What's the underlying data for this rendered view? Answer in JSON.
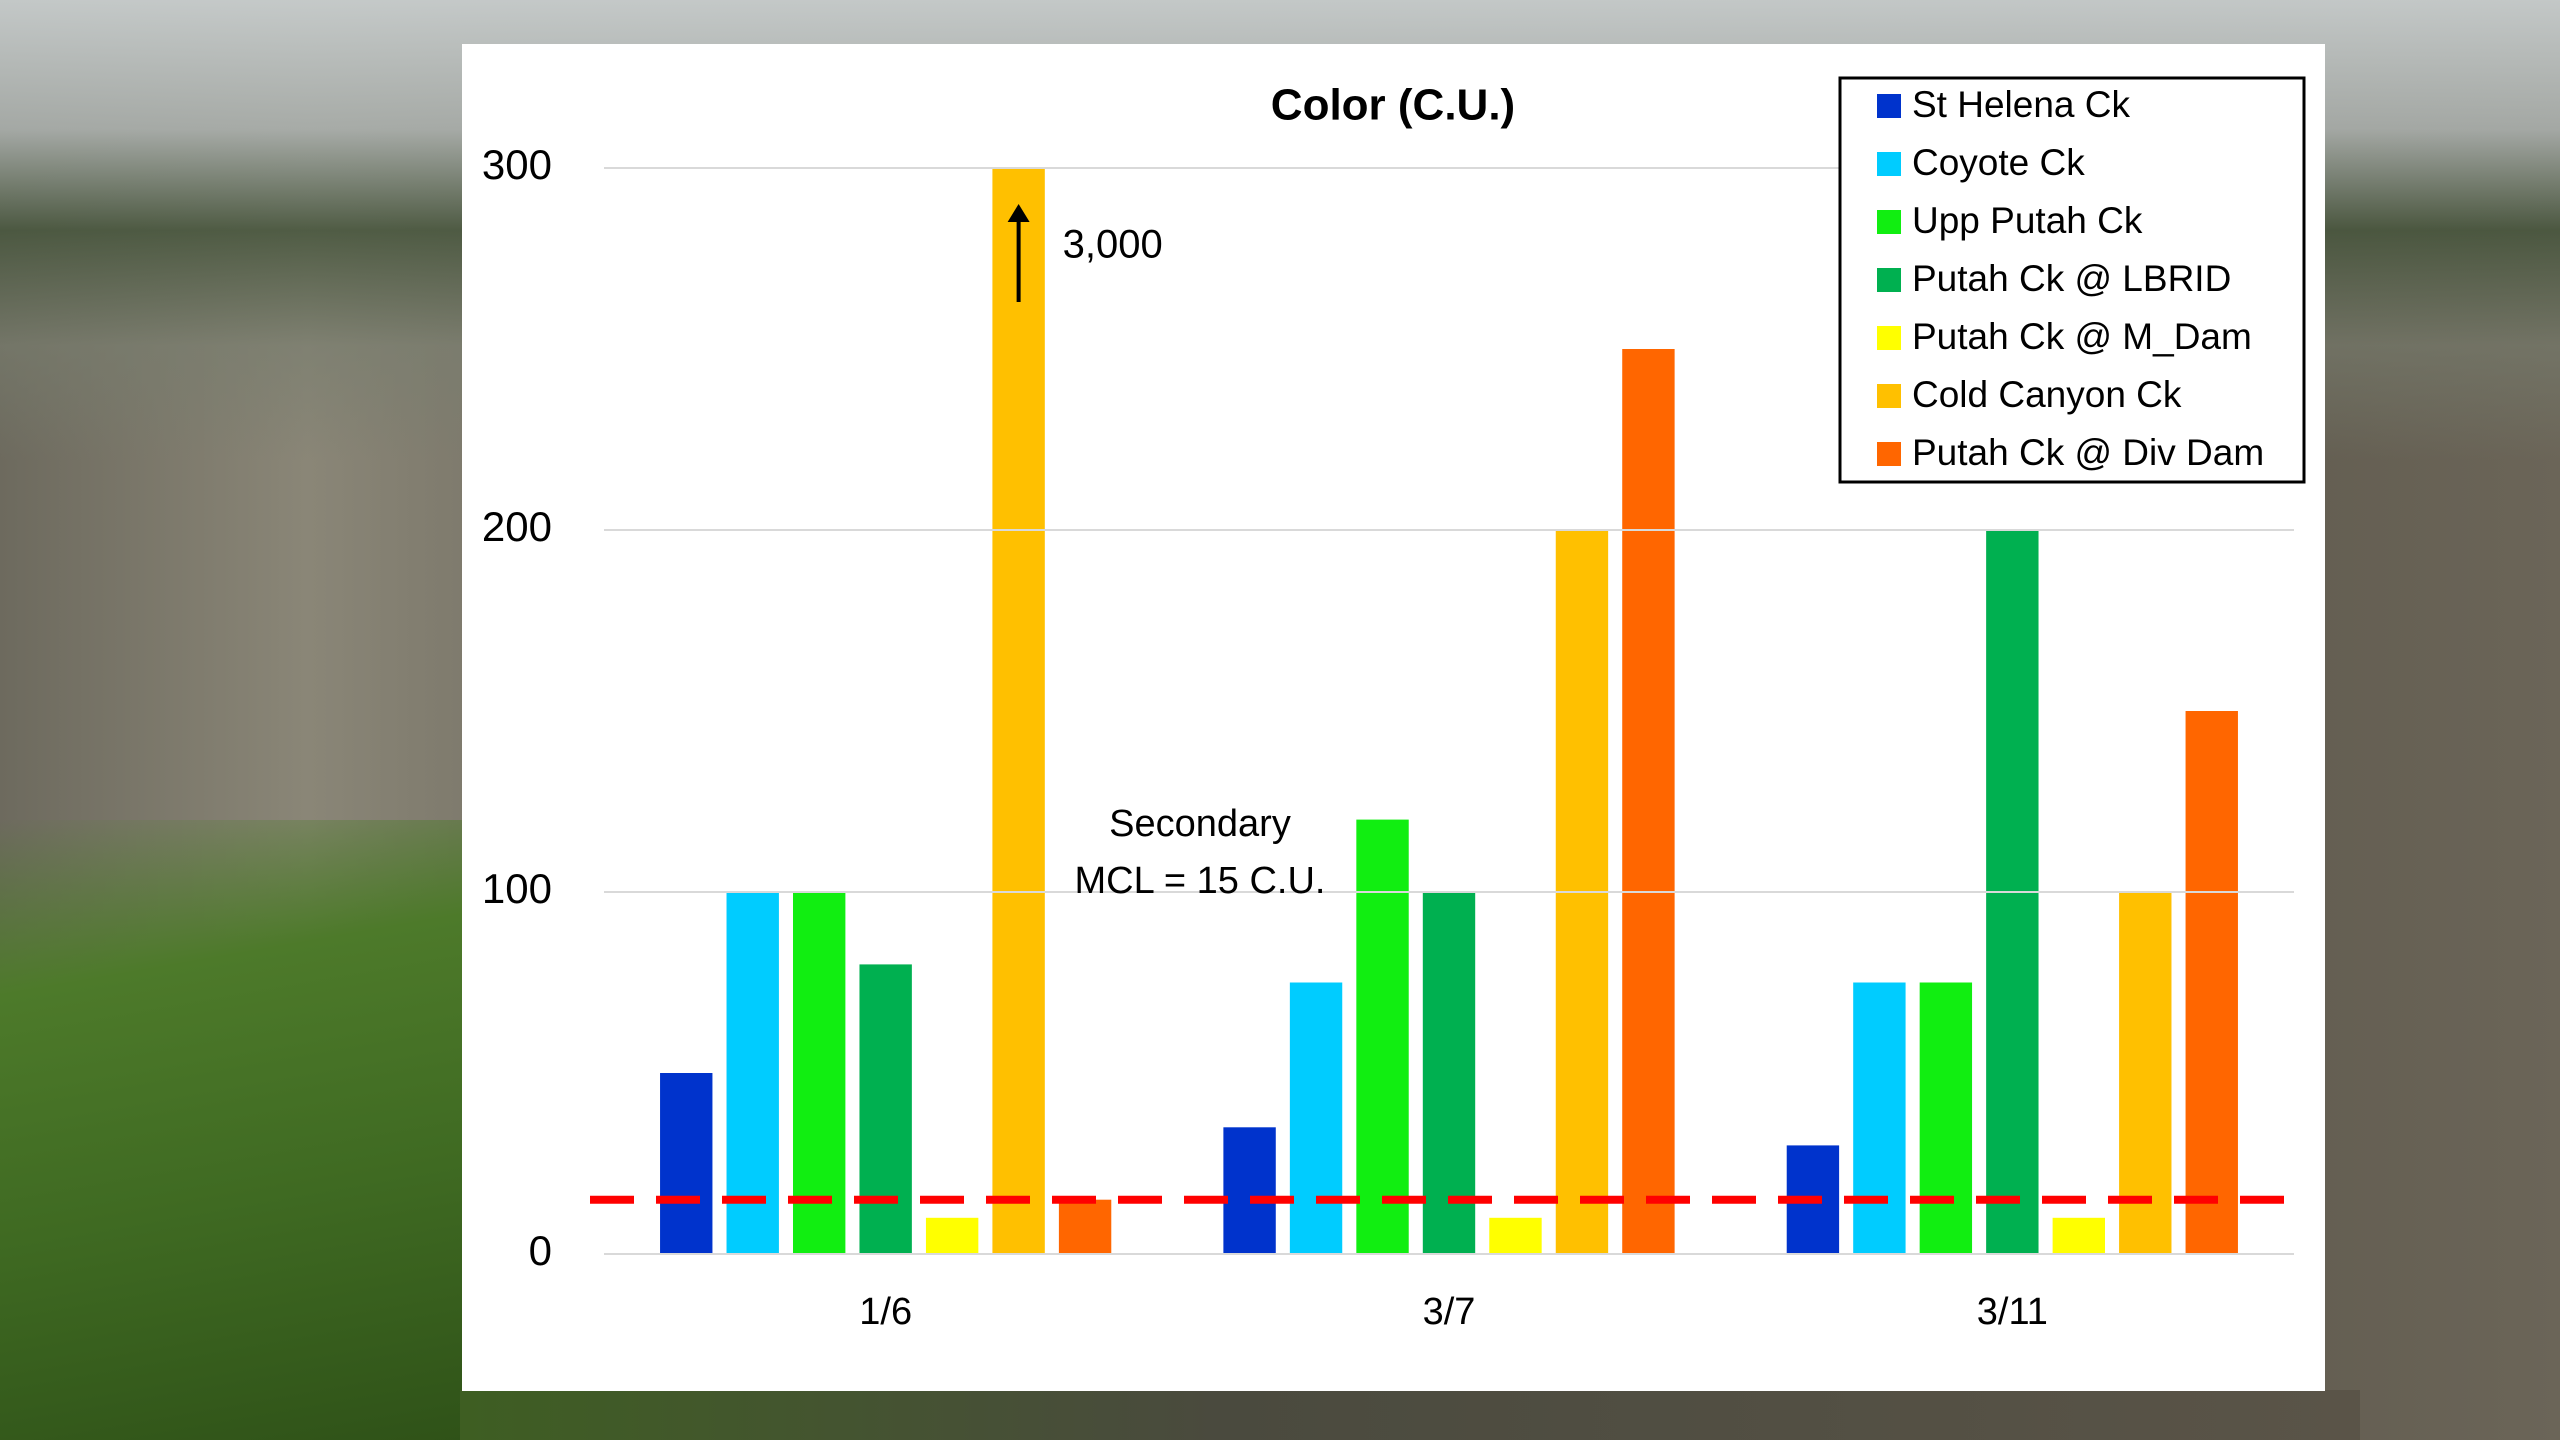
{
  "chart_data": {
    "type": "bar",
    "title": "Color (C.U.)",
    "categories": [
      "1/6",
      "3/7",
      "3/11"
    ],
    "series": [
      {
        "name": "St Helena Ck",
        "color": "#0033cc",
        "values": [
          50,
          35,
          30
        ]
      },
      {
        "name": "Coyote Ck",
        "color": "#00ccff",
        "values": [
          100,
          75,
          75
        ]
      },
      {
        "name": "Upp Putah Ck",
        "color": "#11ee11",
        "values": [
          100,
          120,
          75
        ]
      },
      {
        "name": "Putah Ck @ LBRID",
        "color": "#00b050",
        "values": [
          80,
          100,
          200
        ]
      },
      {
        "name": "Putah Ck @ M_Dam",
        "color": "#ffff00",
        "values": [
          10,
          10,
          10
        ]
      },
      {
        "name": "Cold Canyon Ck",
        "color": "#ffc000",
        "values": [
          3000,
          200,
          100
        ],
        "value_labels": [
          "3,000",
          null,
          null
        ]
      },
      {
        "name": "Putah Ck @ Div Dam",
        "color": "#ff6600",
        "values": [
          15,
          250,
          150
        ]
      }
    ],
    "ylim": [
      0,
      300
    ],
    "yticks": [
      0,
      100,
      200,
      300
    ],
    "grid": true,
    "legend": "top-right",
    "reference_line": {
      "value": 15,
      "color": "#ff0000",
      "label": [
        "Secondary",
        "MCL = 15 C.U."
      ]
    }
  }
}
